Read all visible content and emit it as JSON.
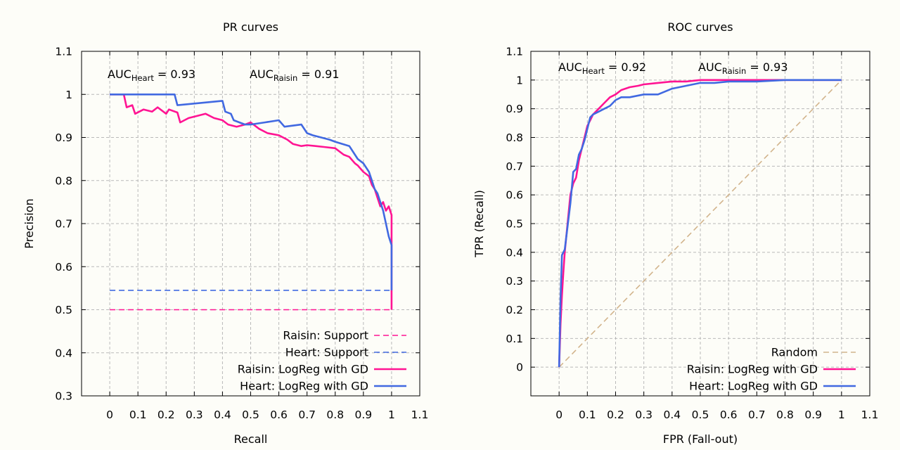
{
  "chart_data": [
    {
      "type": "line",
      "title": "PR curves",
      "xlabel": "Recall",
      "ylabel": "Precision",
      "xlim": [
        -0.1,
        1.1
      ],
      "ylim": [
        0.3,
        1.1
      ],
      "xticks": [
        "0",
        "0.1",
        "0.2",
        "0.3",
        "0.4",
        "0.5",
        "0.6",
        "0.7",
        "0.8",
        "0.9",
        "1",
        "1.1"
      ],
      "yticks": [
        "0.3",
        "0.4",
        "0.5",
        "0.6",
        "0.7",
        "0.8",
        "0.9",
        "1",
        "1.1"
      ],
      "grid": true,
      "legend_position": "bottom-right",
      "annotations": [
        {
          "main": "AUC",
          "sub": "Heart",
          "value": " = 0.93"
        },
        {
          "main": "AUC",
          "sub": "Raisin",
          "value": " = 0.91"
        }
      ],
      "series": [
        {
          "name": "Raisin: Support",
          "color": "#ff1493",
          "dashed": true,
          "x": [
            0,
            1
          ],
          "y": [
            0.5,
            0.5
          ]
        },
        {
          "name": "Heart: Support",
          "color": "#4169e1",
          "dashed": true,
          "x": [
            0,
            1
          ],
          "y": [
            0.545,
            0.545
          ]
        },
        {
          "name": "Raisin: LogReg with GD",
          "color": "#ff1493",
          "dashed": false,
          "x": [
            0,
            0.05,
            0.06,
            0.08,
            0.09,
            0.12,
            0.15,
            0.17,
            0.2,
            0.21,
            0.24,
            0.25,
            0.28,
            0.31,
            0.34,
            0.37,
            0.4,
            0.42,
            0.45,
            0.48,
            0.5,
            0.53,
            0.56,
            0.6,
            0.63,
            0.65,
            0.68,
            0.7,
            0.73,
            0.76,
            0.8,
            0.83,
            0.85,
            0.87,
            0.88,
            0.9,
            0.92,
            0.93,
            0.94,
            0.95,
            0.96,
            0.97,
            0.98,
            0.99,
            1.0,
            1.0,
            1.0
          ],
          "y": [
            1.0,
            1.0,
            0.97,
            0.975,
            0.955,
            0.965,
            0.96,
            0.97,
            0.955,
            0.965,
            0.958,
            0.935,
            0.945,
            0.95,
            0.955,
            0.945,
            0.94,
            0.93,
            0.925,
            0.93,
            0.935,
            0.92,
            0.91,
            0.905,
            0.895,
            0.885,
            0.88,
            0.882,
            0.88,
            0.878,
            0.875,
            0.86,
            0.855,
            0.84,
            0.835,
            0.82,
            0.81,
            0.79,
            0.78,
            0.76,
            0.74,
            0.75,
            0.73,
            0.74,
            0.72,
            0.6,
            0.5
          ]
        },
        {
          "name": "Heart: LogReg with GD",
          "color": "#4169e1",
          "dashed": false,
          "x": [
            0,
            0.23,
            0.24,
            0.4,
            0.41,
            0.43,
            0.44,
            0.46,
            0.48,
            0.5,
            0.55,
            0.6,
            0.62,
            0.68,
            0.7,
            0.72,
            0.75,
            0.78,
            0.8,
            0.85,
            0.87,
            0.88,
            0.89,
            0.9,
            0.92,
            0.93,
            0.94,
            0.95,
            0.96,
            0.97,
            0.98,
            0.99,
            1.0,
            1.0,
            1.0
          ],
          "y": [
            1.0,
            1.0,
            0.975,
            0.985,
            0.96,
            0.955,
            0.94,
            0.935,
            0.93,
            0.93,
            0.935,
            0.94,
            0.925,
            0.93,
            0.91,
            0.905,
            0.9,
            0.895,
            0.89,
            0.88,
            0.86,
            0.85,
            0.845,
            0.84,
            0.82,
            0.8,
            0.78,
            0.77,
            0.75,
            0.73,
            0.7,
            0.67,
            0.65,
            0.6,
            0.545
          ]
        }
      ]
    },
    {
      "type": "line",
      "title": "ROC curves",
      "xlabel": "FPR (Fall-out)",
      "ylabel": "TPR (Recall)",
      "xlim": [
        -0.1,
        1.1
      ],
      "ylim": [
        -0.1,
        1.1
      ],
      "xticks": [
        "0",
        "0.1",
        "0.2",
        "0.3",
        "0.4",
        "0.5",
        "0.6",
        "0.7",
        "0.8",
        "0.9",
        "1",
        "1.1"
      ],
      "yticks": [
        "0",
        "0.1",
        "0.2",
        "0.3",
        "0.4",
        "0.5",
        "0.6",
        "0.7",
        "0.8",
        "0.9",
        "1",
        "1.1"
      ],
      "grid": true,
      "legend_position": "bottom-right",
      "annotations": [
        {
          "main": "AUC",
          "sub": "Heart",
          "value": " = 0.92"
        },
        {
          "main": "AUC",
          "sub": "Raisin",
          "value": " = 0.93"
        }
      ],
      "series": [
        {
          "name": "Random",
          "color": "#d2b48c",
          "dashed": true,
          "x": [
            0,
            1
          ],
          "y": [
            0,
            1
          ]
        },
        {
          "name": "Raisin: LogReg with GD",
          "color": "#ff1493",
          "dashed": false,
          "x": [
            0,
            0.005,
            0.01,
            0.015,
            0.02,
            0.025,
            0.03,
            0.035,
            0.04,
            0.05,
            0.06,
            0.07,
            0.08,
            0.09,
            0.1,
            0.11,
            0.12,
            0.14,
            0.16,
            0.18,
            0.2,
            0.22,
            0.25,
            0.28,
            0.3,
            0.35,
            0.4,
            0.45,
            0.5,
            0.6,
            0.7,
            0.8,
            0.9,
            1.0
          ],
          "y": [
            0,
            0.15,
            0.25,
            0.33,
            0.4,
            0.45,
            0.5,
            0.55,
            0.6,
            0.64,
            0.66,
            0.72,
            0.76,
            0.8,
            0.84,
            0.86,
            0.88,
            0.9,
            0.92,
            0.94,
            0.95,
            0.965,
            0.975,
            0.98,
            0.985,
            0.99,
            0.995,
            0.995,
            1.0,
            1.0,
            1.0,
            1.0,
            1.0,
            1.0
          ]
        },
        {
          "name": "Heart: LogReg with GD",
          "color": "#4169e1",
          "dashed": false,
          "x": [
            0,
            0.005,
            0.01,
            0.02,
            0.03,
            0.04,
            0.05,
            0.06,
            0.07,
            0.08,
            0.09,
            0.1,
            0.11,
            0.12,
            0.14,
            0.16,
            0.18,
            0.2,
            0.22,
            0.25,
            0.3,
            0.35,
            0.4,
            0.45,
            0.5,
            0.55,
            0.6,
            0.7,
            0.8,
            0.9,
            1.0
          ],
          "y": [
            0,
            0.24,
            0.39,
            0.41,
            0.49,
            0.57,
            0.68,
            0.69,
            0.74,
            0.76,
            0.79,
            0.83,
            0.87,
            0.88,
            0.89,
            0.9,
            0.91,
            0.93,
            0.94,
            0.94,
            0.95,
            0.95,
            0.97,
            0.98,
            0.99,
            0.99,
            0.995,
            0.995,
            1.0,
            1.0,
            1.0
          ]
        }
      ]
    }
  ]
}
